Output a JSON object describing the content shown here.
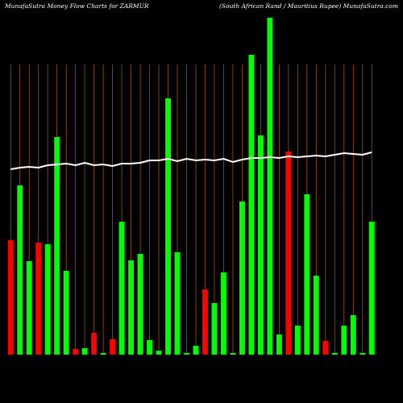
{
  "chart_data": {
    "type": "bar",
    "title": "MunafaSutra  Money Flow  Charts for ZARMUR",
    "subtitle": "(South African  Rand / Mauritius Rupee) MunafaSutra.com",
    "values": [
      142,
      210,
      116,
      139,
      137,
      270,
      104,
      7,
      8,
      27,
      2,
      19,
      165,
      117,
      125,
      18,
      5,
      318,
      127,
      2,
      11,
      81,
      64,
      102,
      2,
      190,
      372,
      272,
      418,
      25,
      252,
      36,
      199,
      98,
      17,
      2,
      36,
      49,
      2,
      165
    ],
    "colors": [
      "#ff0000",
      "#00ff00",
      "#00ff00",
      "#ff0000",
      "#00ff00",
      "#00ff00",
      "#00ff00",
      "#ff0000",
      "#00ff00",
      "#ff0000",
      "#00ff00",
      "#ff0000",
      "#00ff00",
      "#00ff00",
      "#00ff00",
      "#00ff00",
      "#00ff00",
      "#00ff00",
      "#00ff00",
      "#00ff00",
      "#00ff00",
      "#ff0000",
      "#00ff00",
      "#00ff00",
      "#00ff00",
      "#00ff00",
      "#00ff00",
      "#00ff00",
      "#00ff00",
      "#00ff00",
      "#ff0000",
      "#00ff00",
      "#00ff00",
      "#00ff00",
      "#ff0000",
      "#00ff00",
      "#00ff00",
      "#00ff00",
      "#00ff00",
      "#00ff00"
    ],
    "line": {
      "color": "#ffffff",
      "values": [
        230,
        232,
        233,
        232,
        235,
        236,
        237,
        235,
        238,
        235,
        236,
        234,
        237,
        237,
        238,
        241,
        241,
        243,
        240,
        243,
        241,
        242,
        241,
        243,
        239,
        242,
        244,
        244,
        245,
        244,
        246,
        245,
        246,
        247,
        246,
        248,
        250,
        249,
        248,
        251
      ]
    },
    "ylim": [
      0,
      420
    ]
  }
}
